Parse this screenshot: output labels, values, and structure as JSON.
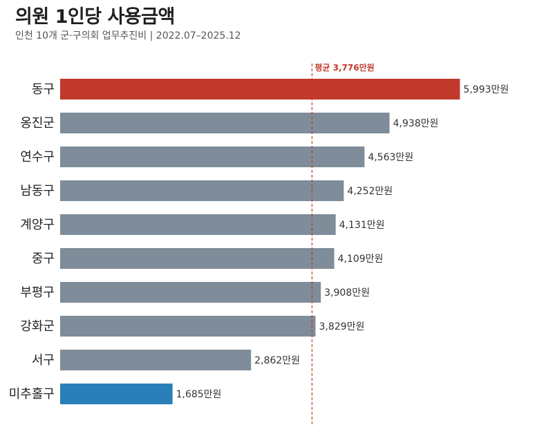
{
  "title": "의원 1인당 사용금액",
  "subtitle": "인천 10개 군·구의회 업무추진비 | 2022.07–2025.12",
  "chart_data": {
    "type": "bar",
    "orientation": "horizontal",
    "title": "의원 1인당 사용금액",
    "subtitle": "인천 10개 군·구의회 업무추진비 | 2022.07–2025.12",
    "unit": "만원",
    "categories": [
      "동구",
      "옹진군",
      "연수구",
      "남동구",
      "계양구",
      "중구",
      "부평구",
      "강화군",
      "서구",
      "미추홀구"
    ],
    "values": [
      5993,
      4938,
      4563,
      4252,
      4131,
      4109,
      3908,
      3829,
      2862,
      1685
    ],
    "value_labels": [
      "5,993만원",
      "4,938만원",
      "4,563만원",
      "4,252만원",
      "4,131만원",
      "4,109만원",
      "3,908만원",
      "3,829만원",
      "2,862만원",
      "1,685만원"
    ],
    "colors": [
      "#c0392b",
      "#7f8c99",
      "#7f8c99",
      "#7f8c99",
      "#7f8c99",
      "#7f8c99",
      "#7f8c99",
      "#7f8c99",
      "#7f8c99",
      "#2a7fba"
    ],
    "xlim": [
      0,
      6000
    ],
    "average": {
      "value": 3776,
      "label": "평균 3,776만원",
      "color": "#c0392b"
    }
  }
}
